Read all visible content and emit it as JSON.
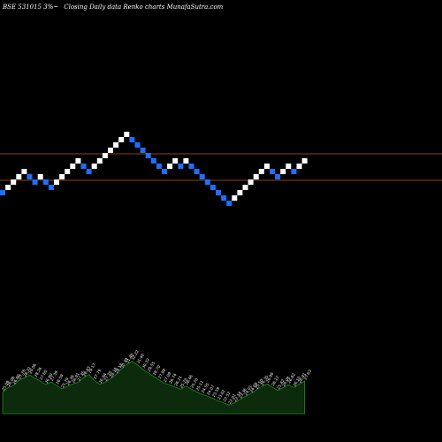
{
  "header": {
    "symbol": "BSE 531015 ",
    "percent": "3%",
    "tilde": "~",
    "caption": "Closing Daily data  Renko  charts MunafaSutra.com"
  },
  "colors": {
    "background": "#000000",
    "up_brick": "#ffffff",
    "down_brick": "#1f6fff",
    "level_line": "#c0561c",
    "volume_fill": "#0c2a0c",
    "volume_stroke": "#1f8a1f"
  },
  "chart_data": [
    {
      "type": "renko",
      "title": "BSE 531015 3%~ Closing Daily data Renko charts MunafaSutra.com",
      "grid": false,
      "bricks": [
        "down",
        "up",
        "up",
        "up",
        "up",
        "down",
        "down",
        "up",
        "down",
        "down",
        "up",
        "up",
        "up",
        "up",
        "up",
        "down",
        "down",
        "up",
        "up",
        "up",
        "up",
        "up",
        "up",
        "up",
        "down",
        "down",
        "down",
        "down",
        "down",
        "down",
        "down",
        "up",
        "up",
        "down",
        "up",
        "down",
        "down",
        "down",
        "down",
        "down",
        "down",
        "down",
        "down",
        "up",
        "up",
        "up",
        "up",
        "up",
        "up",
        "up",
        "down",
        "down",
        "up",
        "up",
        "down",
        "up",
        "up"
      ],
      "brick_size_percent": 3,
      "horizontal_levels": [
        "upper",
        "lower"
      ]
    },
    {
      "type": "area",
      "labels": [
        "25.09",
        "26.08",
        "26.60",
        "27.76",
        "28.32",
        "29.06",
        "28.26",
        "27.60",
        "26.80",
        "27.39",
        "26.59",
        "25.79",
        "26.39",
        "26.91",
        "27.35",
        "28.43",
        "29.17",
        "27.79",
        "26.84",
        "27.35",
        "28.18",
        "29.13",
        "30.39",
        "31.48",
        "32.22",
        "31.40",
        "30.32",
        "29.55",
        "28.70",
        "27.89",
        "27.09",
        "26.74",
        "26.21",
        "25.70",
        "26.46",
        "25.70",
        "25.11",
        "24.55",
        "24.07",
        "23.59",
        "23.02",
        "22.52",
        "22.01",
        "22.54",
        "23.36",
        "24.01",
        "24.68",
        "25.50",
        "26.35",
        "26.99",
        "26.22",
        "25.42",
        "26.08",
        "26.82",
        "26.10",
        "26.91",
        "27.63"
      ],
      "values": [
        25.09,
        26.08,
        26.6,
        27.76,
        28.32,
        29.06,
        28.26,
        27.6,
        26.8,
        27.39,
        26.59,
        25.79,
        26.39,
        26.91,
        27.35,
        28.43,
        29.17,
        27.79,
        26.84,
        27.35,
        28.18,
        29.13,
        30.39,
        31.48,
        32.22,
        31.4,
        30.32,
        29.55,
        28.7,
        27.89,
        27.09,
        26.74,
        26.21,
        25.7,
        26.46,
        25.7,
        25.11,
        24.55,
        24.07,
        23.59,
        23.02,
        22.52,
        22.01,
        22.54,
        23.36,
        24.01,
        24.68,
        25.5,
        26.35,
        26.99,
        26.22,
        25.42,
        26.08,
        26.82,
        26.1,
        26.91,
        27.63
      ]
    }
  ]
}
